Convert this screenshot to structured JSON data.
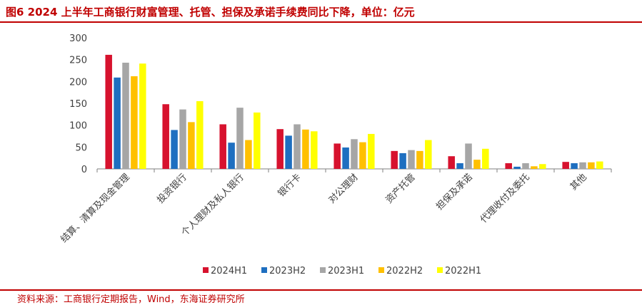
{
  "title": "图6  2024 上半年工商银行财富管理、托管、担保及承诺手续费同比下降，单位：亿元",
  "source": "资料来源：工商银行定期报告，Wind，东海证券研究所",
  "chart_data": {
    "type": "bar",
    "title": "",
    "xlabel": "",
    "ylabel": "",
    "ylim": [
      0,
      300
    ],
    "yticks": [
      0,
      50,
      100,
      150,
      200,
      250,
      300
    ],
    "grid": false,
    "legend_position": "bottom",
    "categories": [
      "结算、清算及现金管理",
      "投资银行",
      "个人理财及私人银行",
      "银行卡",
      "对公理财",
      "资产托管",
      "担保及承诺",
      "代理收付及委托",
      "其他"
    ],
    "series": [
      {
        "name": "2024H1",
        "color": "#d7122e",
        "values": [
          261,
          148,
          102,
          91,
          58,
          41,
          29,
          13,
          16
        ]
      },
      {
        "name": "2023H2",
        "color": "#1e6fc0",
        "values": [
          209,
          89,
          60,
          76,
          49,
          36,
          13,
          5,
          13
        ]
      },
      {
        "name": "2023H1",
        "color": "#a6a6a6",
        "values": [
          243,
          136,
          140,
          102,
          68,
          43,
          58,
          13,
          15
        ]
      },
      {
        "name": "2022H2",
        "color": "#ffc000",
        "values": [
          212,
          107,
          66,
          90,
          61,
          41,
          21,
          6,
          15
        ]
      },
      {
        "name": "2022H1",
        "color": "#ffff00",
        "values": [
          241,
          155,
          129,
          86,
          80,
          66,
          46,
          11,
          17
        ]
      }
    ]
  }
}
